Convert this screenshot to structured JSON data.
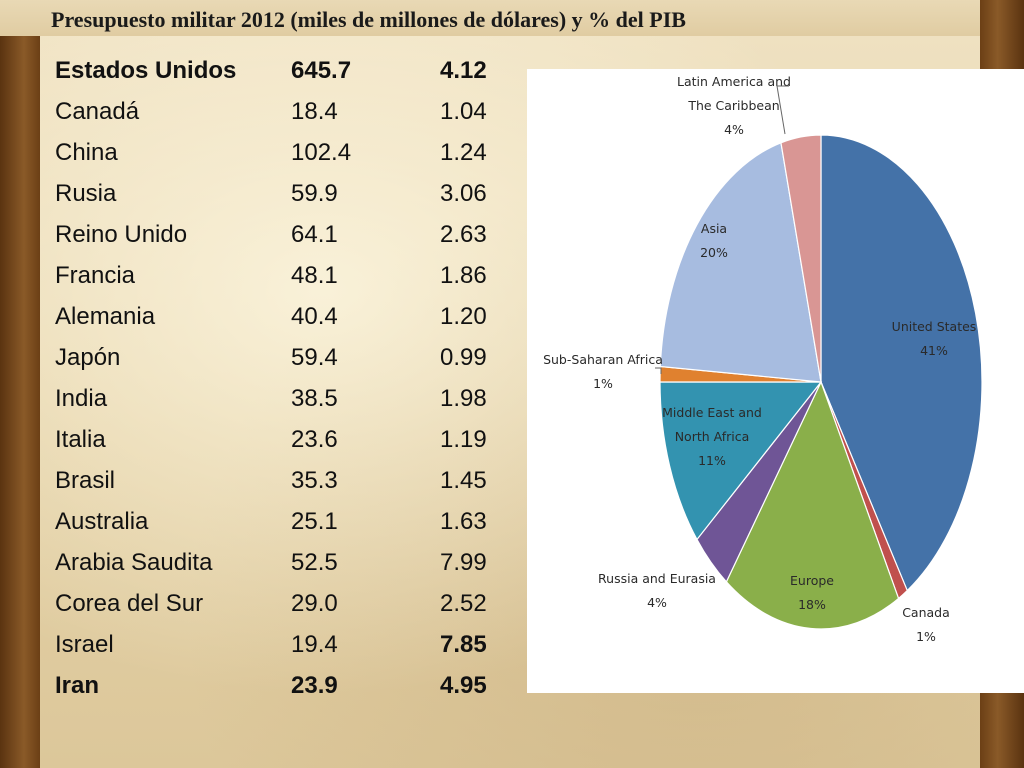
{
  "slide": {
    "title": "Presupuesto militar 2012 (miles de millones de dólares) y % del PIB"
  },
  "table": {
    "rows": [
      {
        "country": "Estados Unidos",
        "budget": "645.7",
        "gdp_pct": "4.12",
        "bold": true
      },
      {
        "country": "Canadá",
        "budget": "18.4",
        "gdp_pct": "1.04"
      },
      {
        "country": "China",
        "budget": "102.4",
        "gdp_pct": "1.24"
      },
      {
        "country": "Rusia",
        "budget": "59.9",
        "gdp_pct": "3.06"
      },
      {
        "country": "Reino Unido",
        "budget": "64.1",
        "gdp_pct": "2.63"
      },
      {
        "country": "Francia",
        "budget": "48.1",
        "gdp_pct": "1.86"
      },
      {
        "country": "Alemania",
        "budget": "40.4",
        "gdp_pct": "1.20"
      },
      {
        "country": "Japón",
        "budget": "59.4",
        "gdp_pct": "0.99"
      },
      {
        "country": "India",
        "budget": "38.5",
        "gdp_pct": "1.98"
      },
      {
        "country": "Italia",
        "budget": "23.6",
        "gdp_pct": "1.19"
      },
      {
        "country": "Brasil",
        "budget": "35.3",
        "gdp_pct": "1.45"
      },
      {
        "country": "Australia",
        "budget": "25.1",
        "gdp_pct": "1.63"
      },
      {
        "country": "Arabia Saudita",
        "budget": "52.5",
        "gdp_pct": "7.99"
      },
      {
        "country": "Corea del Sur",
        "budget": "29.0",
        "gdp_pct": "2.52"
      },
      {
        "country": "Israel",
        "budget": "19.4",
        "gdp_pct": "7.85",
        "gdp_bold": true
      },
      {
        "country": "Iran",
        "budget": "23.9",
        "gdp_pct": "4.95",
        "bold": true
      }
    ]
  },
  "chart_data": {
    "type": "pie",
    "title": "",
    "start_angle_deg": 0,
    "direction": "clockwise",
    "slices": [
      {
        "label_lines": [
          "United States",
          "41%"
        ],
        "value": 41,
        "color": "#4472a8"
      },
      {
        "label_lines": [
          "Canada",
          "1%"
        ],
        "value": 1,
        "color": "#c0504d"
      },
      {
        "label_lines": [
          "Europe",
          "18%"
        ],
        "value": 18,
        "color": "#8aaf4a"
      },
      {
        "label_lines": [
          "Russia and Eurasia",
          "4%"
        ],
        "value": 4,
        "color": "#6f5596"
      },
      {
        "label_lines": [
          "Middle East and",
          "North Africa",
          "11%"
        ],
        "value": 11,
        "color": "#3393b0"
      },
      {
        "label_lines": [
          "Sub-Saharan Africa",
          "1%"
        ],
        "value": 1,
        "color": "#e0812f"
      },
      {
        "label_lines": [
          "Asia",
          "20%"
        ],
        "value": 20,
        "color": "#a7bce0"
      },
      {
        "label_lines": [
          "Latin America and",
          "The Caribbean",
          "4%"
        ],
        "value": 4,
        "color": "#d99694"
      }
    ]
  }
}
